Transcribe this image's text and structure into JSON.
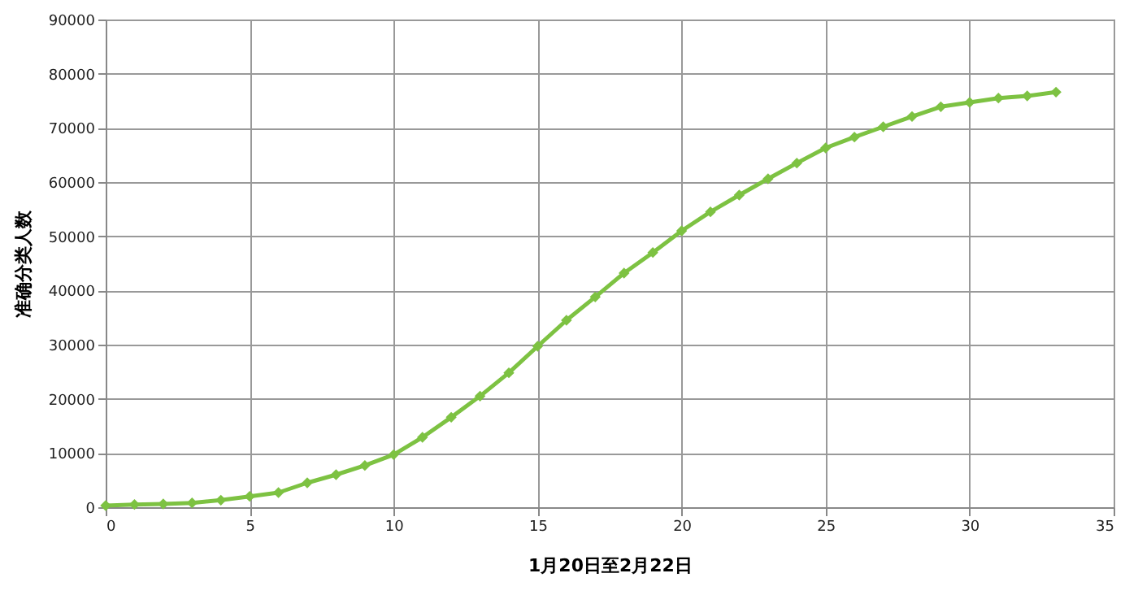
{
  "chart_data": {
    "type": "line",
    "xlabel": "1月20日至2月22日",
    "ylabel": "准确分类人数",
    "x": [
      0,
      1,
      2,
      3,
      4,
      5,
      6,
      7,
      8,
      9,
      10,
      11,
      12,
      13,
      14,
      15,
      16,
      17,
      18,
      19,
      20,
      21,
      22,
      23,
      24,
      25,
      26,
      27,
      28,
      29,
      30,
      31,
      32,
      33
    ],
    "series": [
      {
        "color": "#7dc242",
        "values": [
          300,
          500,
          600,
          800,
          1300,
          2000,
          2700,
          4500,
          6000,
          7700,
          9700,
          12900,
          16600,
          20500,
          24800,
          29700,
          34500,
          38800,
          43200,
          47000,
          51000,
          54500,
          57600,
          60600,
          63500,
          66300,
          68300,
          70200,
          72100,
          73900,
          74700,
          75500,
          75900,
          76600
        ]
      }
    ],
    "xlim": [
      0,
      35
    ],
    "xticks": [
      0,
      5,
      10,
      15,
      20,
      25,
      30,
      35
    ],
    "ylim": [
      0,
      90000
    ],
    "yticks": [
      0,
      10000,
      20000,
      30000,
      40000,
      50000,
      60000,
      70000,
      80000,
      90000
    ],
    "grid": true,
    "marker": "diamond",
    "line_style": "solid"
  }
}
